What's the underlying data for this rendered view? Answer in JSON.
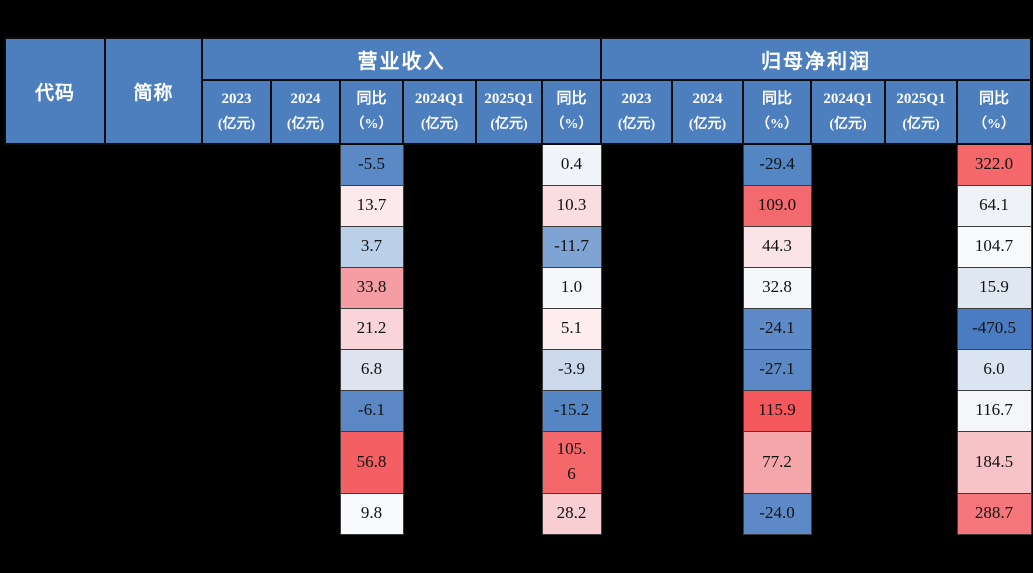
{
  "table": {
    "code_header": "代码",
    "name_header": "简称",
    "colors": {
      "header_bg": "#4d7ebd",
      "header_text": "#ffffff",
      "cell_text": "#111111",
      "page_bg": "#000000"
    },
    "groups": [
      {
        "title": "营业收入",
        "columns": [
          {
            "line1": "2023",
            "line2": "(亿元)"
          },
          {
            "line1": "2024",
            "line2": "(亿元)"
          },
          {
            "line1": "同比",
            "line2": "（%）"
          },
          {
            "line1": "2024Q1",
            "line2": "(亿元)"
          },
          {
            "line1": "2025Q1",
            "line2": "(亿元)"
          },
          {
            "line1": "同比",
            "line2": "（%）"
          }
        ]
      },
      {
        "title": "归母净利润",
        "columns": [
          {
            "line1": "2023",
            "line2": "(亿元)"
          },
          {
            "line1": "2024",
            "line2": "(亿元)"
          },
          {
            "line1": "同比",
            "line2": "（%）"
          },
          {
            "line1": "2024Q1",
            "line2": "(亿元)"
          },
          {
            "line1": "2025Q1",
            "line2": "(亿元)"
          },
          {
            "line1": "同比",
            "line2": "（%）"
          }
        ]
      }
    ],
    "rows": [
      {
        "revenue_yoy": {
          "value": "-5.5",
          "bg": "#5b89c6"
        },
        "revenue_q1_yoy": {
          "value": "0.4",
          "bg": "#f1f4f9"
        },
        "profit_yoy": {
          "value": "-29.4",
          "bg": "#5486c4"
        },
        "profit_q1_yoy": {
          "value": "322.0",
          "bg": "#f4686c"
        }
      },
      {
        "revenue_yoy": {
          "value": "13.7",
          "bg": "#fce9ec"
        },
        "revenue_q1_yoy": {
          "value": "10.3",
          "bg": "#fadde1"
        },
        "profit_yoy": {
          "value": "109.0",
          "bg": "#f2696e"
        },
        "profit_q1_yoy": {
          "value": "64.1",
          "bg": "#eff3f8"
        }
      },
      {
        "revenue_yoy": {
          "value": "3.7",
          "bg": "#bad0e8"
        },
        "revenue_q1_yoy": {
          "value": "-11.7",
          "bg": "#7fa3d3"
        },
        "profit_yoy": {
          "value": "44.3",
          "bg": "#fbe4e7"
        },
        "profit_q1_yoy": {
          "value": "104.7",
          "bg": "#f9fafc"
        }
      },
      {
        "revenue_yoy": {
          "value": "33.8",
          "bg": "#f49da3"
        },
        "revenue_q1_yoy": {
          "value": "1.0",
          "bg": "#f5f7fb"
        },
        "profit_yoy": {
          "value": "32.8",
          "bg": "#f5f8fb"
        },
        "profit_q1_yoy": {
          "value": "15.9",
          "bg": "#dfe7f2"
        }
      },
      {
        "revenue_yoy": {
          "value": "21.2",
          "bg": "#f9d4d9"
        },
        "revenue_q1_yoy": {
          "value": "5.1",
          "bg": "#fdedef"
        },
        "profit_yoy": {
          "value": "-24.1",
          "bg": "#5e8bc7"
        },
        "profit_q1_yoy": {
          "value": "-470.5",
          "bg": "#4a7cc2"
        }
      },
      {
        "revenue_yoy": {
          "value": "6.8",
          "bg": "#dde4ef"
        },
        "revenue_q1_yoy": {
          "value": "-3.9",
          "bg": "#ccd9ec"
        },
        "profit_yoy": {
          "value": "-27.1",
          "bg": "#5c89c5"
        },
        "profit_q1_yoy": {
          "value": "6.0",
          "bg": "#dbe5f1"
        }
      },
      {
        "revenue_yoy": {
          "value": "-6.1",
          "bg": "#5b88c5"
        },
        "revenue_q1_yoy": {
          "value": "-15.2",
          "bg": "#5586c3"
        },
        "profit_yoy": {
          "value": "115.9",
          "bg": "#f4575c"
        },
        "profit_q1_yoy": {
          "value": "116.7",
          "bg": "#f4f6fa"
        }
      },
      {
        "revenue_yoy": {
          "value": "56.8",
          "bg": "#f45f63"
        },
        "revenue_q1_yoy": {
          "value": "105.6",
          "bg": "#f4676b",
          "display": [
            "105.",
            "6"
          ]
        },
        "profit_yoy": {
          "value": "77.2",
          "bg": "#f4a6ab"
        },
        "profit_q1_yoy": {
          "value": "184.5",
          "bg": "#f8c3c7"
        }
      },
      {
        "revenue_yoy": {
          "value": "9.8",
          "bg": "#f9fafd"
        },
        "revenue_q1_yoy": {
          "value": "28.2",
          "bg": "#f8ced3"
        },
        "profit_yoy": {
          "value": "-24.0",
          "bg": "#5d8ac6"
        },
        "profit_q1_yoy": {
          "value": "288.7",
          "bg": "#f5777b"
        }
      }
    ]
  }
}
